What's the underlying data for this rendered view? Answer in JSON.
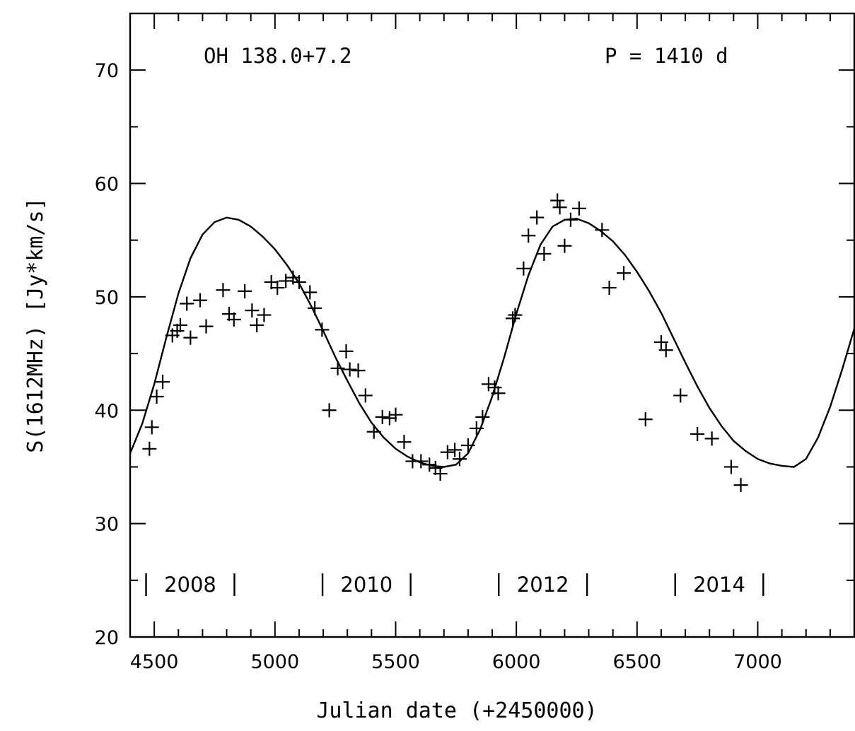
{
  "chart_data": {
    "type": "scatter",
    "xlabel": "Julian date (+2450000)",
    "ylabel": "S(1612MHz) [Jy*km/s]",
    "xlim": [
      4400,
      7400
    ],
    "ylim": [
      20,
      75
    ],
    "x_major_ticks": [
      4500,
      5000,
      5500,
      6000,
      6500,
      7000
    ],
    "x_minor_step": 100,
    "y_major_ticks": [
      20,
      30,
      40,
      50,
      60,
      70
    ],
    "y_minor_step": 5,
    "grid": false,
    "annotations": {
      "source": "OH  138.0+7.2",
      "period": "P  =  1410  d"
    },
    "year_markers": [
      {
        "label": "2008",
        "start": 4466,
        "end": 4832
      },
      {
        "label": "2010",
        "start": 5197,
        "end": 5562
      },
      {
        "label": "2012",
        "start": 5927,
        "end": 6293
      },
      {
        "label": "2014",
        "start": 6658,
        "end": 7023
      }
    ],
    "series": [
      {
        "type": "scatter",
        "marker": "plus",
        "points": [
          [
            4480,
            36.6
          ],
          [
            4490,
            38.5
          ],
          [
            4510,
            41.2
          ],
          [
            4535,
            42.5
          ],
          [
            4575,
            46.6
          ],
          [
            4595,
            47.0
          ],
          [
            4608,
            47.5
          ],
          [
            4635,
            49.4
          ],
          [
            4650,
            46.4
          ],
          [
            4690,
            49.7
          ],
          [
            4715,
            47.4
          ],
          [
            4785,
            50.6
          ],
          [
            4810,
            48.5
          ],
          [
            4830,
            48.0
          ],
          [
            4875,
            50.5
          ],
          [
            4905,
            48.8
          ],
          [
            4925,
            47.5
          ],
          [
            4955,
            48.4
          ],
          [
            4985,
            51.3
          ],
          [
            5010,
            50.8
          ],
          [
            5045,
            51.4
          ],
          [
            5075,
            51.7
          ],
          [
            5100,
            51.3
          ],
          [
            5145,
            50.4
          ],
          [
            5165,
            49.0
          ],
          [
            5195,
            47.1
          ],
          [
            5225,
            40.0
          ],
          [
            5260,
            43.7
          ],
          [
            5295,
            45.2
          ],
          [
            5310,
            43.6
          ],
          [
            5345,
            43.5
          ],
          [
            5375,
            41.3
          ],
          [
            5410,
            38.1
          ],
          [
            5445,
            39.4
          ],
          [
            5475,
            39.3
          ],
          [
            5500,
            39.6
          ],
          [
            5535,
            37.2
          ],
          [
            5570,
            35.5
          ],
          [
            5605,
            35.5
          ],
          [
            5640,
            35.2
          ],
          [
            5665,
            34.9
          ],
          [
            5685,
            34.4
          ],
          [
            5715,
            36.3
          ],
          [
            5745,
            36.5
          ],
          [
            5765,
            35.7
          ],
          [
            5800,
            36.9
          ],
          [
            5835,
            38.4
          ],
          [
            5860,
            39.4
          ],
          [
            5885,
            42.3
          ],
          [
            5910,
            42.0
          ],
          [
            5925,
            41.5
          ],
          [
            5985,
            48.1
          ],
          [
            5995,
            48.4
          ],
          [
            6030,
            52.5
          ],
          [
            6050,
            55.4
          ],
          [
            6085,
            57.0
          ],
          [
            6115,
            53.8
          ],
          [
            6170,
            58.5
          ],
          [
            6180,
            57.9
          ],
          [
            6200,
            54.5
          ],
          [
            6225,
            56.8
          ],
          [
            6260,
            57.8
          ],
          [
            6355,
            55.9
          ],
          [
            6385,
            50.8
          ],
          [
            6445,
            52.1
          ],
          [
            6535,
            39.2
          ],
          [
            6600,
            46.0
          ],
          [
            6620,
            45.3
          ],
          [
            6680,
            41.3
          ],
          [
            6750,
            37.9
          ],
          [
            6810,
            37.5
          ],
          [
            6890,
            35.0
          ],
          [
            6930,
            33.4
          ]
        ]
      },
      {
        "type": "line",
        "fit": "sinusoidal",
        "period": 1410,
        "points": [
          [
            4400,
            36.2
          ],
          [
            4450,
            38.8
          ],
          [
            4500,
            42.3
          ],
          [
            4550,
            46.4
          ],
          [
            4600,
            50.3
          ],
          [
            4650,
            53.4
          ],
          [
            4700,
            55.5
          ],
          [
            4750,
            56.6
          ],
          [
            4800,
            57.0
          ],
          [
            4850,
            56.8
          ],
          [
            4900,
            56.2
          ],
          [
            4950,
            55.3
          ],
          [
            5000,
            54.2
          ],
          [
            5050,
            52.8
          ],
          [
            5100,
            51.2
          ],
          [
            5150,
            49.2
          ],
          [
            5200,
            47.0
          ],
          [
            5250,
            44.7
          ],
          [
            5300,
            42.6
          ],
          [
            5350,
            40.6
          ],
          [
            5400,
            38.9
          ],
          [
            5450,
            37.6
          ],
          [
            5500,
            36.6
          ],
          [
            5550,
            35.9
          ],
          [
            5600,
            35.4
          ],
          [
            5650,
            35.1
          ],
          [
            5700,
            35.0
          ],
          [
            5750,
            35.2
          ],
          [
            5800,
            36.2
          ],
          [
            5850,
            38.3
          ],
          [
            5900,
            41.2
          ],
          [
            5950,
            44.7
          ],
          [
            6000,
            48.5
          ],
          [
            6050,
            51.9
          ],
          [
            6100,
            54.6
          ],
          [
            6150,
            56.2
          ],
          [
            6200,
            56.8
          ],
          [
            6250,
            56.9
          ],
          [
            6300,
            56.5
          ],
          [
            6350,
            55.8
          ],
          [
            6400,
            54.9
          ],
          [
            6450,
            53.7
          ],
          [
            6500,
            52.2
          ],
          [
            6550,
            50.5
          ],
          [
            6600,
            48.6
          ],
          [
            6650,
            46.4
          ],
          [
            6700,
            44.2
          ],
          [
            6750,
            42.1
          ],
          [
            6800,
            40.2
          ],
          [
            6850,
            38.6
          ],
          [
            6900,
            37.3
          ],
          [
            6950,
            36.4
          ],
          [
            7000,
            35.7
          ],
          [
            7050,
            35.3
          ],
          [
            7100,
            35.1
          ],
          [
            7150,
            35.0
          ],
          [
            7200,
            35.7
          ],
          [
            7250,
            37.6
          ],
          [
            7300,
            40.3
          ],
          [
            7350,
            43.6
          ],
          [
            7400,
            47.2
          ]
        ]
      }
    ]
  }
}
